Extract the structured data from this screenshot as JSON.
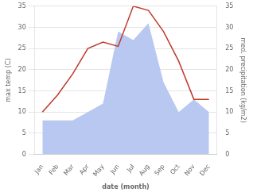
{
  "chart_data": {
    "type": "line",
    "categories": [
      "Jan",
      "Feb",
      "Mar",
      "Apr",
      "May",
      "Jun",
      "Jul",
      "Aug",
      "Sep",
      "Oct",
      "Nov",
      "Dec"
    ],
    "series": [
      {
        "type": "area",
        "color": "#b8c8f0",
        "values": [
          8,
          8,
          8,
          10,
          12,
          29,
          27,
          31,
          17,
          10,
          13,
          10
        ]
      },
      {
        "type": "line",
        "color": "#c0392b",
        "values": [
          10,
          14,
          19,
          25,
          26.5,
          25.5,
          35,
          34,
          29,
          22,
          13,
          13
        ]
      }
    ],
    "xlabel": "date (month)",
    "ylabel": "max temp (C)",
    "y2label": "med. precipitation (kg/m2)",
    "ylim": [
      0,
      35
    ],
    "yticks": [
      0,
      5,
      10,
      15,
      20,
      25,
      30,
      35
    ],
    "y2lim": [
      0,
      35
    ],
    "y2ticks": [
      0,
      5,
      10,
      15,
      20,
      25,
      30,
      35
    ],
    "grid": "y"
  }
}
